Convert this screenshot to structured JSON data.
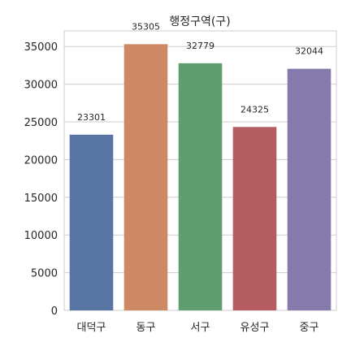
{
  "chart_data": {
    "type": "bar",
    "title": "행정구역(구)",
    "xlabel": "",
    "ylabel": "",
    "categories": [
      "대덕구",
      "동구",
      "서구",
      "유성구",
      "중구"
    ],
    "values": [
      23301,
      35305,
      32779,
      24325,
      32044
    ],
    "data_labels": [
      "23301",
      "35305",
      "32779",
      "24325",
      "32044"
    ],
    "colors": [
      "#5875a4",
      "#cc8963",
      "#5f9e6e",
      "#b55d60",
      "#857aab"
    ],
    "ylim": [
      0,
      37070
    ],
    "yticks": [
      0,
      5000,
      10000,
      15000,
      20000,
      25000,
      30000,
      35000
    ],
    "ytick_labels": [
      "0",
      "5000",
      "10000",
      "15000",
      "20000",
      "25000",
      "30000",
      "35000"
    ],
    "grid": true,
    "legend": "none"
  }
}
